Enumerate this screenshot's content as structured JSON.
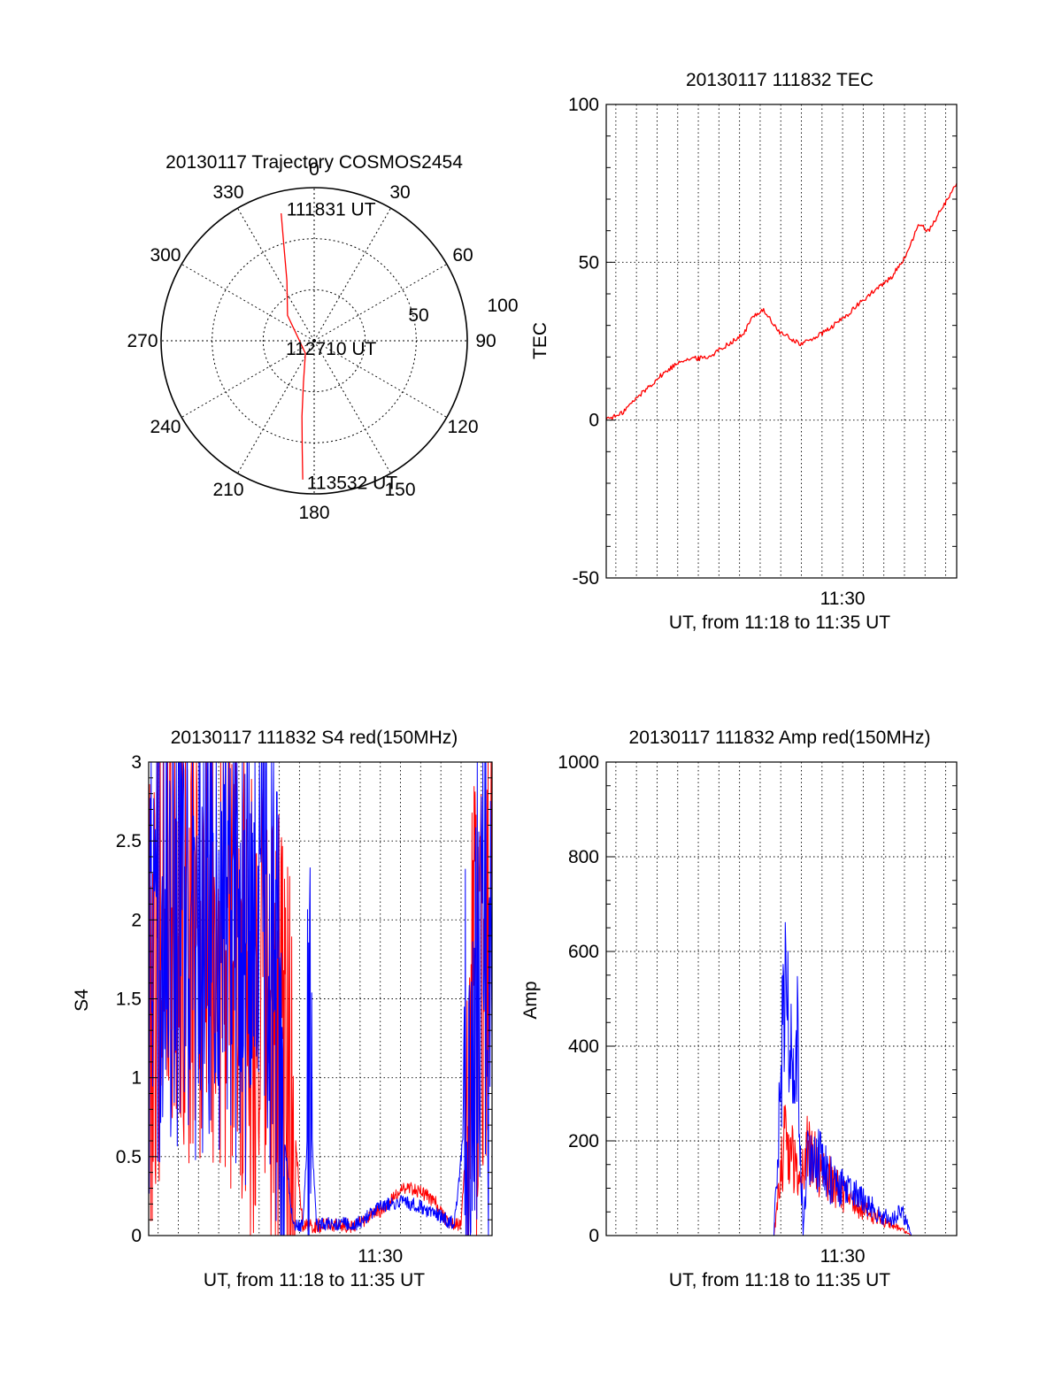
{
  "chart_data": [
    {
      "panel": "trajectory",
      "type": "polar",
      "title": "20130117 Trajectory COSMOS2454",
      "azimuth_labels": [
        "0",
        "30",
        "60",
        "90",
        "120",
        "150",
        "180",
        "210",
        "240",
        "270",
        "300",
        "330"
      ],
      "azimuth_values": [
        0,
        30,
        60,
        90,
        120,
        150,
        180,
        210,
        240,
        270,
        300,
        330
      ],
      "ring_labels": [
        "50",
        "100"
      ],
      "rlim": [
        0,
        100
      ],
      "grid": true,
      "series": [
        {
          "color": "#ff0000",
          "points": [
            {
              "az": 345.5,
              "r": 86
            },
            {
              "az": 342.3,
              "r": 65
            },
            {
              "az": 335.5,
              "r": 43
            },
            {
              "az": 313.6,
              "r": 24
            },
            {
              "az": 215.0,
              "r": 10
            },
            {
              "az": 194.5,
              "r": 28
            },
            {
              "az": 189.2,
              "r": 50
            },
            {
              "az": 186.3,
              "r": 71
            },
            {
              "az": 184.7,
              "r": 91
            }
          ]
        }
      ],
      "annotations": [
        {
          "text": "111831 UT",
          "az": 347,
          "r": 88
        },
        {
          "text": "112710 UT",
          "az": 0,
          "r": 0
        },
        {
          "text": "113532 UT",
          "az": 184,
          "r": 93
        }
      ]
    },
    {
      "panel": "tec",
      "type": "line",
      "title": "20130117 111832 TEC",
      "xlabel": "UT, from 11:18 to 11:35 UT",
      "ylabel": "TEC",
      "xlim": [
        "11:18:32",
        "11:35:32"
      ],
      "x_tick_labels": [
        "11:30"
      ],
      "x_ticks": [
        "11:30:00"
      ],
      "ylim": [
        -50,
        100
      ],
      "y_ticks": [
        -50,
        0,
        50,
        100
      ],
      "y_tick_labels": [
        "-50",
        "0",
        "50",
        "100"
      ],
      "grid": true,
      "series": [
        {
          "color": "#ff0000",
          "x": [
            "11:18:32",
            "11:19:10",
            "11:20:10",
            "11:21:10",
            "11:22:10",
            "11:23:30",
            "11:24:10",
            "11:25:10",
            "11:25:40",
            "11:26:10",
            "11:26:40",
            "11:27:00",
            "11:27:10",
            "11:28:00",
            "11:29:10",
            "11:30:10",
            "11:31:10",
            "11:32:20",
            "11:33:10",
            "11:33:40",
            "11:34:10",
            "11:35:32"
          ],
          "y": [
            0.5,
            1.5,
            8,
            14,
            19,
            20,
            23,
            27,
            33,
            35,
            30,
            27.5,
            27,
            24,
            28,
            33,
            39,
            45,
            53,
            62,
            60,
            75
          ]
        }
      ]
    },
    {
      "panel": "s4",
      "type": "line",
      "title": "20130117 111832 S4 red(150MHz)",
      "xlabel": "UT, from 11:18 to 11:35 UT",
      "ylabel": "S4",
      "xlim": [
        "11:18:32",
        "11:35:32"
      ],
      "x_tick_labels": [
        "11:30"
      ],
      "x_ticks": [
        "11:30:00"
      ],
      "ylim": [
        0,
        3
      ],
      "y_ticks": [
        0,
        0.5,
        1,
        1.5,
        2,
        2.5,
        3
      ],
      "y_tick_labels": [
        "0",
        "0.5",
        "1",
        "1.5",
        "2",
        "2.5",
        "3"
      ],
      "grid": true,
      "series": [
        {
          "color": "#ff0000",
          "x": [
            "11:18:32",
            "11:19:30",
            "11:20:30",
            "11:21:30",
            "11:22:30",
            "11:23:30",
            "11:24:10",
            "11:24:50",
            "11:25:20",
            "11:25:40",
            "11:26:10",
            "11:26:40",
            "11:27:30",
            "11:28:40",
            "11:29:30",
            "11:30:20",
            "11:31:00",
            "11:31:40",
            "11:32:40",
            "11:33:20",
            "11:34:00",
            "11:34:40",
            "11:35:32"
          ],
          "y": [
            1.5,
            2.3,
            1.8,
            2.1,
            1.9,
            1.6,
            1.5,
            1.3,
            1.0,
            0.8,
            0.06,
            0.06,
            0.07,
            0.06,
            0.12,
            0.18,
            0.3,
            0.3,
            0.22,
            0.08,
            0.07,
            1.5,
            2.1
          ]
        },
        {
          "color": "#0000ff",
          "x": [
            "11:18:32",
            "11:19:30",
            "11:20:30",
            "11:21:30",
            "11:22:30",
            "11:23:30",
            "11:24:10",
            "11:24:40",
            "11:25:10",
            "11:25:40",
            "11:26:10",
            "11:26:30",
            "11:26:50",
            "11:27:20",
            "11:28:00",
            "11:29:00",
            "11:30:00",
            "11:31:00",
            "11:32:00",
            "11:33:00",
            "11:33:40",
            "11:34:20",
            "11:35:00",
            "11:35:32"
          ],
          "y": [
            1.6,
            2.2,
            1.9,
            2.0,
            2.2,
            1.8,
            2.5,
            1.9,
            0.7,
            0.07,
            0.07,
            0.9,
            0.07,
            0.07,
            0.07,
            0.08,
            0.18,
            0.22,
            0.18,
            0.12,
            0.07,
            0.9,
            2.0,
            1.2
          ]
        }
      ]
    },
    {
      "panel": "amp",
      "type": "line",
      "title": "20130117 111832 Amp red(150MHz)",
      "xlabel": "UT, from 11:18 to 11:35 UT",
      "ylabel": "Amp",
      "xlim": [
        "11:18:32",
        "11:35:32"
      ],
      "x_tick_labels": [
        "11:30"
      ],
      "x_ticks": [
        "11:30:00"
      ],
      "ylim": [
        0,
        1000
      ],
      "y_ticks": [
        0,
        200,
        400,
        600,
        800,
        1000
      ],
      "y_tick_labels": [
        "0",
        "200",
        "400",
        "600",
        "800",
        "1000"
      ],
      "grid": true,
      "series": [
        {
          "color": "#ff0000",
          "x": [
            "11:18:32",
            "11:26:00",
            "11:26:40",
            "11:27:10",
            "11:27:20",
            "11:27:50",
            "11:28:20",
            "11:28:50",
            "11:29:20",
            "11:29:50",
            "11:30:20",
            "11:30:50",
            "11:31:20",
            "11:31:50",
            "11:32:20",
            "11:32:50",
            "11:33:20",
            "11:35:32"
          ],
          "y": [
            0,
            0,
            0,
            200,
            190,
            130,
            180,
            150,
            120,
            100,
            70,
            60,
            45,
            35,
            25,
            15,
            0,
            0
          ]
        },
        {
          "color": "#0000ff",
          "x": [
            "11:18:32",
            "11:26:00",
            "11:26:40",
            "11:27:10",
            "11:27:30",
            "11:27:50",
            "11:28:05",
            "11:28:20",
            "11:28:50",
            "11:29:20",
            "11:29:50",
            "11:30:20",
            "11:30:50",
            "11:31:20",
            "11:32:00",
            "11:32:30",
            "11:32:50",
            "11:33:20",
            "11:35:32"
          ],
          "y": [
            0,
            0,
            0,
            480,
            430,
            400,
            0,
            200,
            160,
            120,
            100,
            90,
            75,
            60,
            40,
            35,
            60,
            0,
            0
          ]
        }
      ]
    }
  ]
}
